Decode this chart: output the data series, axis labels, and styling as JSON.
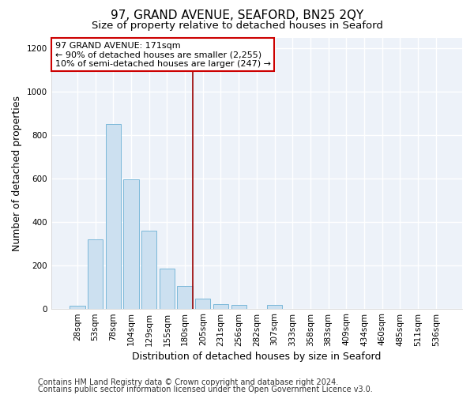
{
  "title": "97, GRAND AVENUE, SEAFORD, BN25 2QY",
  "subtitle": "Size of property relative to detached houses in Seaford",
  "xlabel": "Distribution of detached houses by size in Seaford",
  "ylabel": "Number of detached properties",
  "bar_labels": [
    "28sqm",
    "53sqm",
    "78sqm",
    "104sqm",
    "129sqm",
    "155sqm",
    "180sqm",
    "205sqm",
    "231sqm",
    "256sqm",
    "282sqm",
    "307sqm",
    "333sqm",
    "358sqm",
    "383sqm",
    "409sqm",
    "434sqm",
    "460sqm",
    "485sqm",
    "511sqm",
    "536sqm"
  ],
  "bar_values": [
    12,
    320,
    850,
    595,
    360,
    185,
    105,
    47,
    22,
    15,
    0,
    15,
    0,
    0,
    0,
    0,
    0,
    0,
    0,
    0,
    0
  ],
  "bar_color": "#cce0f0",
  "bar_edge_color": "#7ab8d9",
  "vline_x": 6.45,
  "vline_color": "#990000",
  "annotation_text": "97 GRAND AVENUE: 171sqm\n← 90% of detached houses are smaller (2,255)\n10% of semi-detached houses are larger (247) →",
  "annotation_box_color": "#ffffff",
  "annotation_box_edge_color": "#cc0000",
  "ylim": [
    0,
    1250
  ],
  "yticks": [
    0,
    200,
    400,
    600,
    800,
    1000,
    1200
  ],
  "footer1": "Contains HM Land Registry data © Crown copyright and database right 2024.",
  "footer2": "Contains public sector information licensed under the Open Government Licence v3.0.",
  "fig_bg_color": "#ffffff",
  "plot_bg_color": "#edf2f9",
  "grid_color": "#ffffff",
  "title_fontsize": 11,
  "subtitle_fontsize": 9.5,
  "axis_label_fontsize": 9,
  "tick_fontsize": 7.5,
  "annotation_fontsize": 8,
  "footer_fontsize": 7
}
